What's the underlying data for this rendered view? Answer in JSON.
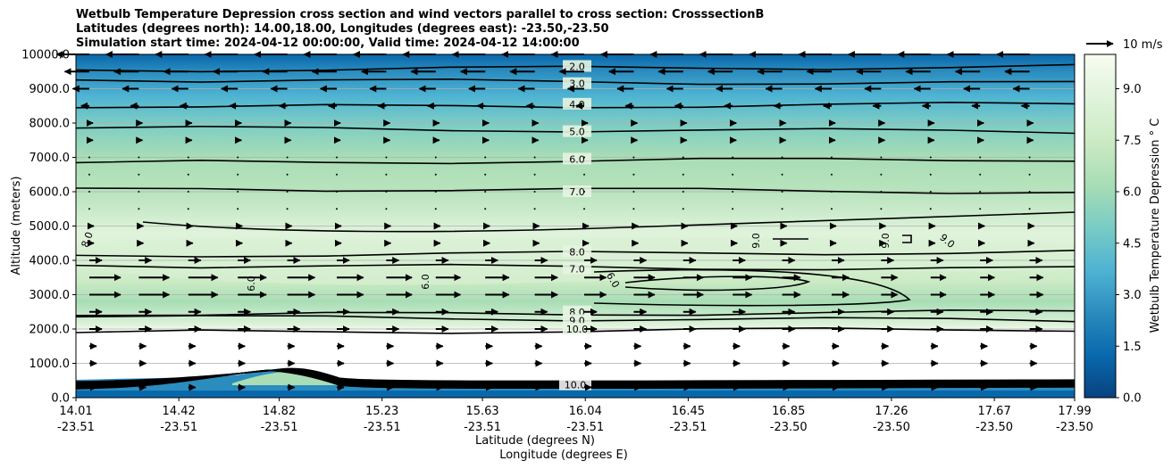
{
  "chart_data": {
    "type": "contour",
    "title_lines": [
      "Wetbulb Temperature Depression cross section and wind vectors parallel to cross section: CrosssectionB",
      "Latitudes (degrees north): 14.00,18.00, Longitudes (degrees east): -23.50,-23.50",
      "Simulation start time: 2024-04-12 00:00:00, Valid time: 2024-04-12 14:00:00"
    ],
    "ylabel": "Altitude (meters)",
    "xlabel_lat": "Latitude (degrees N)",
    "xlabel_lon": "Longitude (degrees E)",
    "ylim": [
      0,
      10000
    ],
    "xlim": [
      14.01,
      17.99
    ],
    "y_ticks": [
      "0.0",
      "1000.0",
      "2000.0",
      "3000.0",
      "4000.0",
      "5000.0",
      "6000.0",
      "7000.0",
      "8000.0",
      "9000.0",
      "10000.0"
    ],
    "y_tick_values": [
      0,
      1000,
      2000,
      3000,
      4000,
      5000,
      6000,
      7000,
      8000,
      9000,
      10000
    ],
    "x_tick_values": [
      14.01,
      14.42,
      14.82,
      15.23,
      15.63,
      16.04,
      16.45,
      16.85,
      17.26,
      17.67,
      17.99
    ],
    "x_ticks_lat": [
      "14.01",
      "14.42",
      "14.82",
      "15.23",
      "15.63",
      "16.04",
      "16.45",
      "16.85",
      "17.26",
      "17.67",
      "17.99"
    ],
    "x_ticks_lon": [
      "-23.51",
      "-23.51",
      "-23.51",
      "-23.51",
      "-23.51",
      "-23.51",
      "-23.51",
      "-23.50",
      "-23.50",
      "-23.50",
      "-23.50"
    ],
    "grid": "horizontal",
    "colorbar": {
      "label": "Wetbulb Temperature Depression ° C",
      "range": [
        0,
        10
      ],
      "ticks": [
        "0.0",
        "1.5",
        "3.0",
        "4.5",
        "6.0",
        "7.5",
        "9.0"
      ],
      "tick_values": [
        0,
        1.5,
        3.0,
        4.5,
        6.0,
        7.5,
        9.0
      ],
      "colormap": "GnBu_r",
      "stops": [
        "#08427f",
        "#0868ac",
        "#2b8cbe",
        "#4eb3d3",
        "#7bccc4",
        "#a8ddb5",
        "#ccebc5",
        "#e0f3db",
        "#f7fcf0"
      ]
    },
    "quiver_key": {
      "label": "10 m/s",
      "speed": 10
    },
    "contour_levels": [
      {
        "label": "2.0",
        "altitude": 9650
      },
      {
        "label": "3.0",
        "altitude": 9150
      },
      {
        "label": "4.0",
        "altitude": 8550
      },
      {
        "label": "5.0",
        "altitude": 7750
      },
      {
        "label": "6.0",
        "altitude": 6950
      },
      {
        "label": "7.0",
        "altitude": 6000
      },
      {
        "label": "8.0",
        "altitude": 4250
      },
      {
        "label": "7.0",
        "altitude": 3750
      },
      {
        "label": "8.0",
        "altitude": 2500
      },
      {
        "label": "9.0",
        "altitude": 2250
      },
      {
        "label": "10.0",
        "altitude": 2000
      },
      {
        "label": "10.0",
        "altitude": 350
      }
    ],
    "inline_labels": [
      "8.0",
      "6.0",
      "6.0",
      "6.0",
      "9.0",
      "9.0",
      "9.0"
    ]
  }
}
